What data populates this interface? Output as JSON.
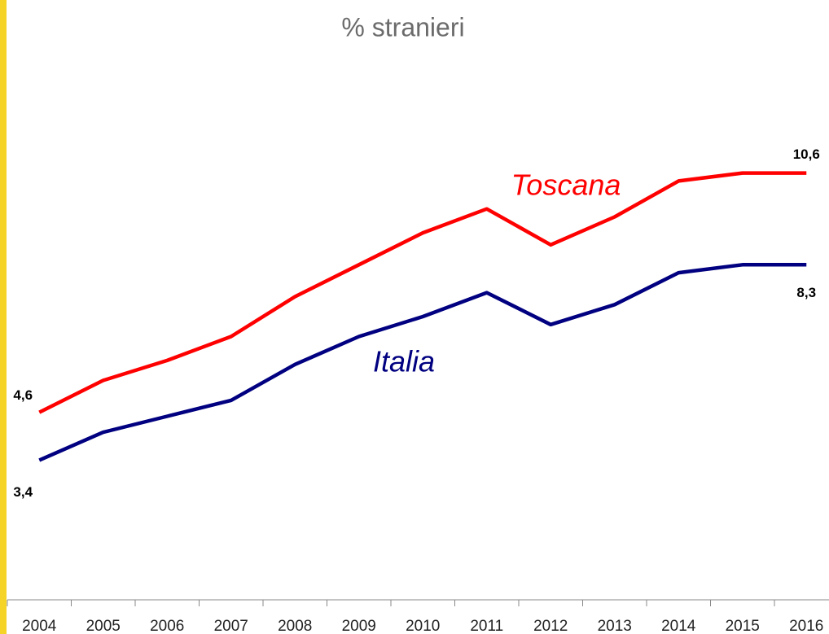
{
  "chart_data": {
    "type": "line",
    "title": "% stranieri",
    "categories": [
      "2004",
      "2005",
      "2006",
      "2007",
      "2008",
      "2009",
      "2010",
      "2011",
      "2012",
      "2013",
      "2014",
      "2015",
      "2016"
    ],
    "ylim": [
      0,
      14
    ],
    "series": [
      {
        "name": "Toscana",
        "color": "#ff0000",
        "values": [
          4.6,
          5.4,
          5.9,
          6.5,
          7.5,
          8.3,
          9.1,
          9.7,
          8.8,
          9.5,
          10.4,
          10.6,
          10.6
        ],
        "value_labels": [
          "4,6",
          null,
          null,
          null,
          null,
          null,
          null,
          null,
          null,
          null,
          null,
          null,
          "10,6"
        ]
      },
      {
        "name": "Italia",
        "color": "#000080",
        "values": [
          3.4,
          4.1,
          4.5,
          4.9,
          5.8,
          6.5,
          7.0,
          7.6,
          6.8,
          7.3,
          8.1,
          8.3,
          8.3
        ],
        "value_labels": [
          "3,4",
          null,
          null,
          null,
          null,
          null,
          null,
          null,
          null,
          null,
          null,
          null,
          "8,3"
        ]
      }
    ]
  }
}
